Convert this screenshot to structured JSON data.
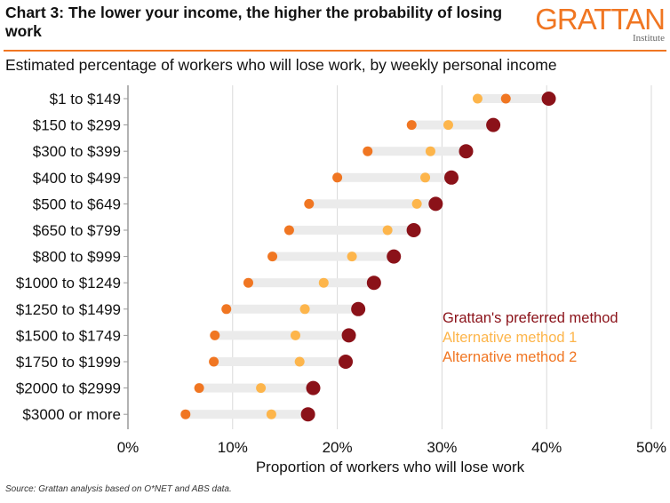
{
  "header": {
    "title": "Chart 3: The lower your income, the higher the probability of losing work",
    "subtitle": "Estimated percentage of workers who will lose work, by weekly personal income",
    "logo_word": "GRATTAN",
    "logo_sub": "Institute"
  },
  "colors": {
    "preferred": "#8B1219",
    "alt1": "#FDB54B",
    "alt2": "#F07622",
    "range_bar": "#EBEBEB",
    "gridline": "#D9D9D9",
    "accent_rule": "#F07622"
  },
  "footer": {
    "source": "Source: Grattan analysis based on O*NET and ABS data."
  },
  "chart_data": {
    "type": "dot-range",
    "title": "Chart 3: The lower your income, the higher the probability of losing work",
    "subtitle": "Estimated percentage of workers who will lose work, by weekly personal income",
    "xlabel": "Proportion of workers who will lose work",
    "ylabel": "",
    "xlim": [
      0,
      50
    ],
    "x_ticks": [
      0,
      10,
      20,
      30,
      40,
      50
    ],
    "x_tick_labels": [
      "0%",
      "10%",
      "20%",
      "30%",
      "40%",
      "50%"
    ],
    "grid": "vertical",
    "legend_position": "right-middle",
    "categories": [
      "$1 to $149",
      "$150 to $299",
      "$300 to $399",
      "$400 to $499",
      "$500 to $649",
      "$650 to $799",
      "$800 to $999",
      "$1000 to $1249",
      "$1250 to $1499",
      "$1500 to $1749",
      "$1750 to $1999",
      "$2000 to $2999",
      "$3000 or more"
    ],
    "series": [
      {
        "name": "Grattan's preferred method",
        "key": "preferred",
        "values": [
          40.2,
          34.9,
          32.3,
          30.9,
          29.4,
          27.3,
          25.4,
          23.5,
          22.0,
          21.1,
          20.8,
          17.7,
          17.2
        ]
      },
      {
        "name": "Alternative method 1",
        "key": "alt1",
        "values": [
          33.4,
          30.6,
          28.9,
          28.4,
          27.6,
          24.8,
          21.4,
          18.7,
          16.9,
          16.0,
          16.4,
          12.7,
          13.7
        ]
      },
      {
        "name": "Alternative method 2",
        "key": "alt2",
        "values": [
          36.1,
          27.1,
          22.9,
          20.0,
          17.3,
          15.4,
          13.8,
          11.5,
          9.4,
          8.3,
          8.2,
          6.8,
          5.5
        ]
      }
    ]
  }
}
